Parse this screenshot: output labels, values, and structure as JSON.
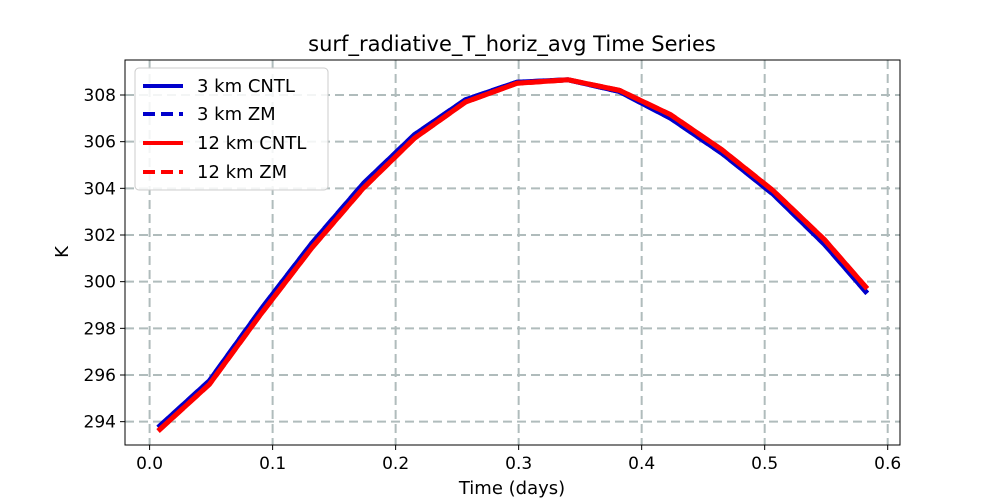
{
  "chart_data": {
    "type": "line",
    "title": "surf_radiative_T_horiz_avg Time Series",
    "xlabel": "Time (days)",
    "ylabel": "K",
    "xlim": [
      -0.02,
      0.61
    ],
    "ylim": [
      293.0,
      309.5
    ],
    "xticks": [
      0.0,
      0.1,
      0.2,
      0.3,
      0.4,
      0.5,
      0.6
    ],
    "xtick_labels": [
      "0.0",
      "0.1",
      "0.2",
      "0.3",
      "0.4",
      "0.5",
      "0.6"
    ],
    "yticks": [
      294,
      296,
      298,
      300,
      302,
      304,
      306,
      308
    ],
    "ytick_labels": [
      "294",
      "296",
      "298",
      "300",
      "302",
      "304",
      "306",
      "308"
    ],
    "grid": true,
    "legend_position": "top-left",
    "x": [
      0.0069,
      0.0486,
      0.0903,
      0.1319,
      0.1736,
      0.2153,
      0.2569,
      0.2986,
      0.3403,
      0.3819,
      0.4236,
      0.4653,
      0.5069,
      0.5486,
      0.5833
    ],
    "series": [
      {
        "name": "3 km CNTL",
        "color": "#0000cc",
        "style": "solid",
        "values": [
          293.75,
          295.75,
          298.8,
          301.65,
          304.2,
          306.3,
          307.8,
          308.55,
          308.65,
          308.15,
          307.0,
          305.5,
          303.75,
          301.6,
          299.5
        ]
      },
      {
        "name": "3 km ZM",
        "color": "#0000cc",
        "style": "dashed",
        "values": [
          293.75,
          295.75,
          298.8,
          301.65,
          304.2,
          306.3,
          307.8,
          308.55,
          308.65,
          308.15,
          307.0,
          305.5,
          303.75,
          301.6,
          299.5
        ]
      },
      {
        "name": "12 km CNTL",
        "color": "#ff0000",
        "style": "solid",
        "values": [
          293.6,
          295.6,
          298.6,
          301.45,
          304.0,
          306.15,
          307.7,
          308.5,
          308.65,
          308.2,
          307.15,
          305.65,
          303.9,
          301.8,
          299.7
        ]
      },
      {
        "name": "12 km ZM",
        "color": "#ff0000",
        "style": "dashed",
        "values": [
          293.6,
          295.6,
          298.6,
          301.45,
          304.0,
          306.15,
          307.7,
          308.5,
          308.65,
          308.2,
          307.15,
          305.65,
          303.9,
          301.8,
          299.7
        ]
      }
    ]
  }
}
